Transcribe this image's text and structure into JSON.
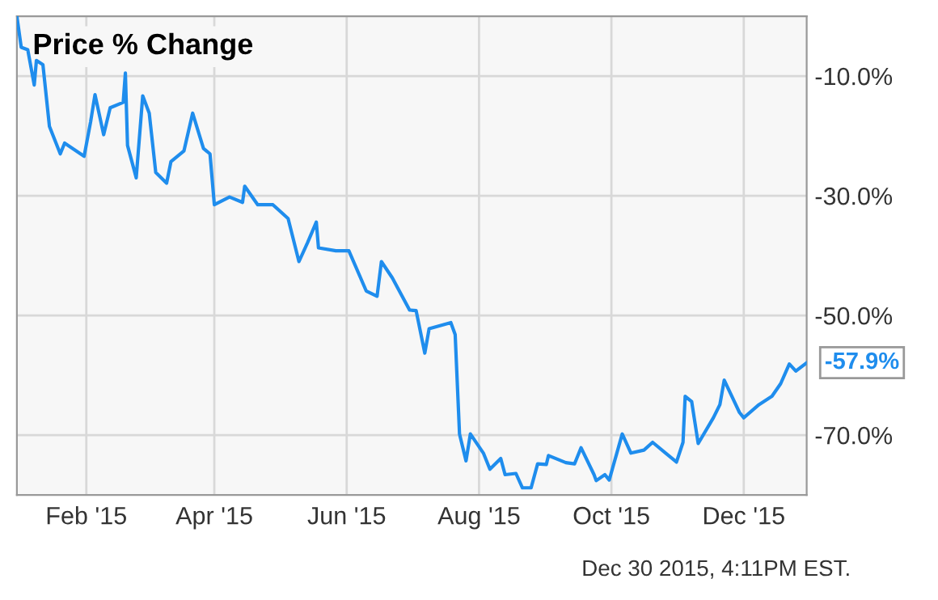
{
  "chart_data": {
    "type": "line",
    "title": "Price % Change",
    "x": [
      "2014-12-31",
      "2015-01-02",
      "2015-01-05",
      "2015-01-08",
      "2015-01-09",
      "2015-01-12",
      "2015-01-15",
      "2015-01-20",
      "2015-01-22",
      "2015-01-31",
      "2015-02-03",
      "2015-02-05",
      "2015-02-09",
      "2015-02-12",
      "2015-02-18",
      "2015-02-19",
      "2015-02-20",
      "2015-02-24",
      "2015-02-27",
      "2015-03-02",
      "2015-03-05",
      "2015-03-10",
      "2015-03-12",
      "2015-03-18",
      "2015-03-22",
      "2015-03-27",
      "2015-03-30",
      "2015-04-01",
      "2015-04-08",
      "2015-04-14",
      "2015-04-15",
      "2015-04-21",
      "2015-04-28",
      "2015-05-05",
      "2015-05-10",
      "2015-05-14",
      "2015-05-18",
      "2015-05-19",
      "2015-05-27",
      "2015-06-02",
      "2015-06-10",
      "2015-06-15",
      "2015-06-17",
      "2015-06-22",
      "2015-06-30",
      "2015-07-03",
      "2015-07-07",
      "2015-07-09",
      "2015-07-19",
      "2015-07-21",
      "2015-07-23",
      "2015-07-26",
      "2015-07-28",
      "2015-08-03",
      "2015-08-06",
      "2015-08-11",
      "2015-08-13",
      "2015-08-18",
      "2015-08-21",
      "2015-08-25",
      "2015-08-28",
      "2015-09-01",
      "2015-09-02",
      "2015-09-10",
      "2015-09-14",
      "2015-09-17",
      "2015-09-23",
      "2015-09-24",
      "2015-09-28",
      "2015-09-30",
      "2015-10-06",
      "2015-10-10",
      "2015-10-16",
      "2015-10-20",
      "2015-10-26",
      "2015-10-31",
      "2015-11-03",
      "2015-11-04",
      "2015-11-07",
      "2015-11-10",
      "2015-11-17",
      "2015-11-20",
      "2015-11-22",
      "2015-11-29",
      "2015-12-01",
      "2015-12-08",
      "2015-12-14",
      "2015-12-18",
      "2015-12-22",
      "2015-12-25",
      "2015-12-30"
    ],
    "series": [
      {
        "color": "#1f8ded",
        "values": [
          0,
          -5.2,
          -5.6,
          -11.5,
          -7.4,
          -8.1,
          -18.4,
          -23,
          -21.2,
          -23.4,
          -17.6,
          -13.1,
          -19.8,
          -15.3,
          -14.4,
          -9.5,
          -21.6,
          -27,
          -13.3,
          -16.2,
          -26.1,
          -27.9,
          -24.3,
          -22.5,
          -16.2,
          -22.1,
          -23,
          -31.5,
          -30.2,
          -31.1,
          -28.4,
          -31.5,
          -31.5,
          -33.8,
          -41,
          -37.8,
          -34.4,
          -38.7,
          -39.2,
          -39.2,
          -45.9,
          -46.8,
          -41,
          -43.7,
          -49.1,
          -49.2,
          -56.3,
          -52.2,
          -51.2,
          -53.2,
          -69.8,
          -74.3,
          -69.8,
          -73,
          -75.7,
          -73.9,
          -76.6,
          -76.4,
          -78.8,
          -78.8,
          -74.8,
          -74.9,
          -73.4,
          -74.6,
          -74.8,
          -72.1,
          -76.6,
          -77.6,
          -76.6,
          -77.5,
          -69.8,
          -73,
          -72.5,
          -71.2,
          -73,
          -74.5,
          -71.2,
          -63.5,
          -64.4,
          -71.4,
          -67.1,
          -64.9,
          -60.8,
          -66.2,
          -67.1,
          -64.9,
          -63.5,
          -61.4,
          -58.1,
          -59.3,
          -57.9
        ]
      }
    ],
    "xlim": [
      "2014-12-31",
      "2015-12-30"
    ],
    "xticks": [
      {
        "value": "2015-02-01",
        "label": "Feb '15"
      },
      {
        "value": "2015-04-01",
        "label": "Apr '15"
      },
      {
        "value": "2015-06-01",
        "label": "Jun '15"
      },
      {
        "value": "2015-08-01",
        "label": "Aug '15"
      },
      {
        "value": "2015-10-01",
        "label": "Oct '15"
      },
      {
        "value": "2015-12-01",
        "label": "Dec '15"
      }
    ],
    "ylim": [
      -80,
      0
    ],
    "yticks": [
      {
        "value": -10,
        "label": "-10.0%"
      },
      {
        "value": -30,
        "label": "-30.0%"
      },
      {
        "value": -50,
        "label": "-50.0%"
      },
      {
        "value": -70,
        "label": "-70.0%"
      }
    ],
    "grid": true,
    "marker": "none",
    "line_style": "solid",
    "annotations": [
      {
        "text": "-57.9%",
        "x": "2015-12-30",
        "y": -57.9
      },
      "Dec 30 2015, 4:11PM EST."
    ]
  }
}
